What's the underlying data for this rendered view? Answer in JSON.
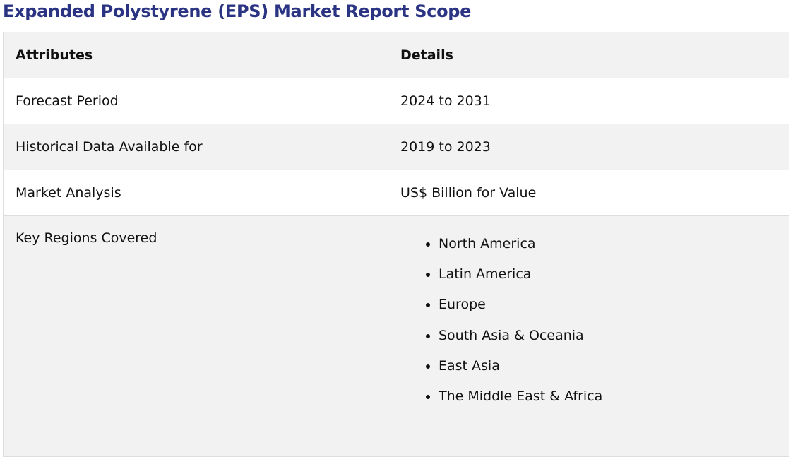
{
  "header": {
    "title": "Expanded Polystyrene (EPS) Market Report Scope"
  },
  "table": {
    "columns": [
      "Attributes",
      "Details"
    ],
    "rows": [
      {
        "attribute": "Forecast Period",
        "details": "2024 to 2031"
      },
      {
        "attribute": "Historical Data Available for",
        "details": "2019 to 2023"
      },
      {
        "attribute": "Market Analysis",
        "details": "US$ Billion for Value"
      },
      {
        "attribute": "Key Regions Covered",
        "details": [
          "North America",
          "Latin America",
          "Europe",
          "South Asia & Oceania",
          "East Asia",
          "The Middle East & Africa"
        ]
      }
    ]
  }
}
